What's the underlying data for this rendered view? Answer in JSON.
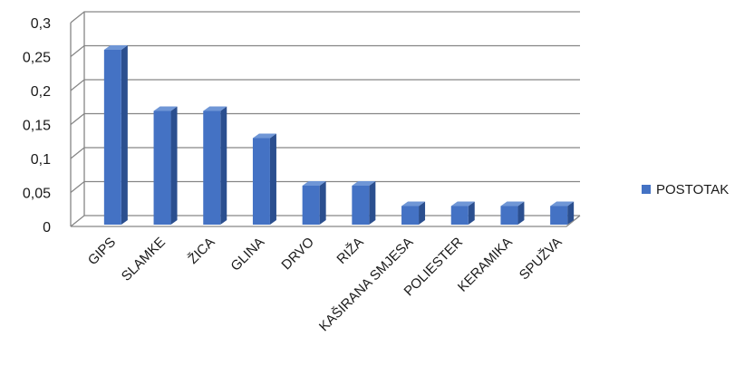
{
  "chart_data": {
    "type": "bar",
    "categories": [
      "GIPS",
      "SLAMKE",
      "ŽICA",
      "GLINA",
      "DRVO",
      "RIŽA",
      "KAŠIRANA SMJESA",
      "POLIESTER",
      "KERAMIKA",
      "SPUŽVA"
    ],
    "series": [
      {
        "name": "POSTOTAK",
        "values": [
          0.26,
          0.17,
          0.17,
          0.13,
          0.06,
          0.06,
          0.03,
          0.03,
          0.03,
          0.03
        ]
      }
    ],
    "y_ticks": [
      "0",
      "0,05",
      "0,1",
      "0,15",
      "0,2",
      "0,25",
      "0,3"
    ],
    "ylim": [
      0,
      0.3
    ],
    "grid": true,
    "style": "3d-clustered-column",
    "legend_position": "right",
    "colors": {
      "bar_front": "#4472C4",
      "bar_side": "#2B4F8F",
      "bar_top": "#6F96D6",
      "grid": "#868686"
    }
  }
}
